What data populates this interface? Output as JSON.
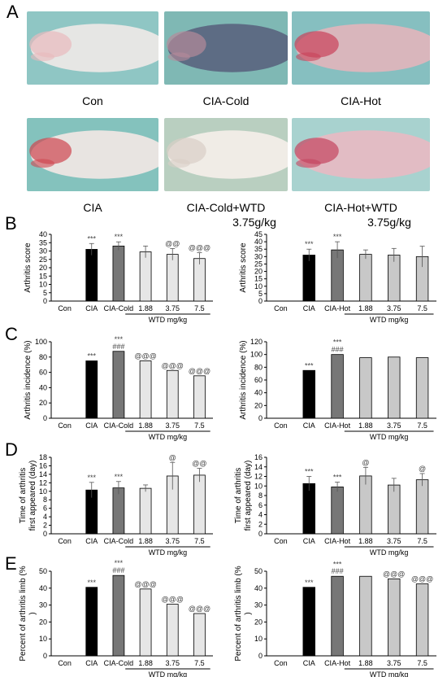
{
  "panel_labels": {
    "A": "A",
    "B": "B",
    "C": "C",
    "D": "D",
    "E": "E"
  },
  "photos": [
    {
      "caption": "Con",
      "bg": "#8fc6c4",
      "paw": "#e6e6e4",
      "tint": "#e8b9bd"
    },
    {
      "caption": "CIA-Cold",
      "bg": "#7fb8b4",
      "paw": "#5d6c84",
      "tint": "#b58a9a"
    },
    {
      "caption": "CIA-Hot",
      "bg": "#86bfc0",
      "paw": "#d9b6bc",
      "tint": "#c9425a"
    },
    {
      "caption": "CIA",
      "bg": "#84c2bd",
      "paw": "#e8e4e1",
      "tint": "#cf4650"
    },
    {
      "caption": "CIA-Cold+WTD",
      "caption2": "3.75g/kg",
      "bg": "#b9cfc0",
      "paw": "#f0ece6",
      "tint": "#d9cfc6"
    },
    {
      "caption": "CIA-Hot+WTD",
      "caption2": "3.75g/kg",
      "bg": "#a8d2cf",
      "paw": "#e2bcc4",
      "tint": "#c5445f"
    }
  ],
  "colors": {
    "con": "#ffffff",
    "cia": "#000000",
    "model": "#777777",
    "wtd": "#e6e6e6",
    "wtd_hot": "#c8c8c8"
  },
  "chart_data": [
    {
      "type": "bar",
      "panel": "B-left",
      "categories": [
        "Con",
        "CIA",
        "CIA-Cold",
        "1.88",
        "3.75",
        "7.5"
      ],
      "values": [
        0,
        31,
        33,
        29.5,
        28,
        25.5
      ],
      "errors": [
        0,
        3.5,
        2.5,
        3.5,
        3.5,
        3.5
      ],
      "annotations": [
        "",
        "***",
        "***",
        "",
        "@@",
        "@@@"
      ],
      "ylabel": "Arthritis score",
      "ylim": [
        0,
        40
      ],
      "yticks": [
        "0",
        "5",
        "10",
        "15",
        "20",
        "25",
        "30",
        "35",
        "40"
      ],
      "group_label": "WTD mg/kg"
    },
    {
      "type": "bar",
      "panel": "B-right",
      "categories": [
        "Con",
        "CIA",
        "CIA-Hot",
        "1.88",
        "3.75",
        "7.5"
      ],
      "values": [
        0,
        31,
        34.5,
        31.5,
        31,
        30
      ],
      "errors": [
        0,
        4,
        5.5,
        3,
        4.5,
        7
      ],
      "annotations": [
        "",
        "***",
        "***",
        "",
        "",
        ""
      ],
      "ylabel": "Arthritis score",
      "ylim": [
        0,
        45
      ],
      "yticks": [
        "0",
        "5",
        "10",
        "15",
        "20",
        "25",
        "30",
        "35",
        "40",
        "45"
      ],
      "group_label": "WTD mg/kg"
    },
    {
      "type": "bar",
      "panel": "C-left",
      "categories": [
        "Con",
        "CIA",
        "CIA-Cold",
        "1.88",
        "3.75",
        "7.5"
      ],
      "values": [
        0,
        75,
        87.5,
        75,
        62.5,
        55.5
      ],
      "errors": [
        0,
        0,
        0,
        0,
        0,
        0
      ],
      "annotations": [
        "",
        "***",
        "***",
        "@@@",
        "@@@",
        "@@@"
      ],
      "annotations2": [
        "",
        "",
        "###",
        "",
        "",
        ""
      ],
      "ylabel": "Arthritis incidence (%)",
      "ylim": [
        0,
        100
      ],
      "yticks": [
        "0",
        "20",
        "40",
        "60",
        "80",
        "100"
      ],
      "group_label": "WTD mg/kg"
    },
    {
      "type": "bar",
      "panel": "C-right",
      "categories": [
        "Con",
        "CIA",
        "CIA-Hot",
        "1.88",
        "3.75",
        "7.5"
      ],
      "values": [
        0,
        75,
        100,
        95,
        96,
        95
      ],
      "errors": [
        0,
        0,
        0,
        0,
        0,
        0
      ],
      "annotations": [
        "",
        "***",
        "***",
        "",
        "",
        ""
      ],
      "annotations2": [
        "",
        "",
        "###",
        "",
        "",
        ""
      ],
      "ylabel": "Arthritis incidence (%)",
      "ylim": [
        0,
        120
      ],
      "yticks": [
        "0",
        "20",
        "40",
        "60",
        "80",
        "100",
        "120"
      ],
      "group_label": "WTD mg/kg"
    },
    {
      "type": "bar",
      "panel": "D-left",
      "categories": [
        "Con",
        "CIA",
        "CIA-Cold",
        "1.88",
        "3.75",
        "7.5"
      ],
      "values": [
        0,
        10.3,
        10.8,
        10.7,
        13.6,
        13.8
      ],
      "errors": [
        0,
        1.8,
        1.5,
        0.8,
        3.2,
        1.6
      ],
      "annotations": [
        "",
        "***",
        "***",
        "",
        "@",
        "@@"
      ],
      "ylabel": "Time of arthritis first appeared (day)",
      "ylim": [
        0,
        18
      ],
      "yticks": [
        "0",
        "2",
        "4",
        "6",
        "8",
        "10",
        "12",
        "14",
        "16",
        "18"
      ],
      "group_label": "WTD mg/kg"
    },
    {
      "type": "bar",
      "panel": "D-right",
      "categories": [
        "Con",
        "CIA",
        "CIA-Hot",
        "1.88",
        "3.75",
        "7.5"
      ],
      "values": [
        0,
        10.5,
        9.8,
        12.1,
        10.2,
        11.3
      ],
      "errors": [
        0,
        1.5,
        1.0,
        1.8,
        1.4,
        1.3
      ],
      "annotations": [
        "",
        "***",
        "***",
        "@",
        "",
        "@"
      ],
      "ylabel": "Time of arthritis first appeared (day)",
      "ylim": [
        0,
        16
      ],
      "yticks": [
        "0",
        "2",
        "4",
        "6",
        "8",
        "10",
        "12",
        "14",
        "16"
      ],
      "group_label": "WTD mg/kg"
    },
    {
      "type": "bar",
      "panel": "E-left",
      "categories": [
        "Con",
        "CIA",
        "CIA-Cold",
        "1.88",
        "3.75",
        "7.5"
      ],
      "values": [
        0,
        40.5,
        47.5,
        39.5,
        30.5,
        25
      ],
      "errors": [
        0,
        0,
        0,
        0,
        0,
        0
      ],
      "annotations": [
        "",
        "***",
        "***",
        "@@@",
        "@@@",
        "@@@"
      ],
      "annotations2": [
        "",
        "",
        "###",
        "",
        "",
        ""
      ],
      "ylabel": "Percent of arthritis limb (%)",
      "ylim": [
        0,
        50
      ],
      "yticks": [
        "0",
        "10",
        "20",
        "30",
        "40",
        "50"
      ],
      "group_label": "WTD mg/kg"
    },
    {
      "type": "bar",
      "panel": "E-right",
      "categories": [
        "Con",
        "CIA",
        "CIA-Hot",
        "1.88",
        "3.75",
        "7.5"
      ],
      "values": [
        0,
        40.5,
        47,
        47,
        45.5,
        42.5
      ],
      "errors": [
        0,
        0,
        0,
        0,
        0,
        0
      ],
      "annotations": [
        "",
        "***",
        "***",
        "",
        "@@@",
        "@@@"
      ],
      "annotations2": [
        "",
        "",
        "###",
        "",
        "",
        ""
      ],
      "ylabel": "Percent of arthritis limb (%)",
      "ylim": [
        0,
        50
      ],
      "yticks": [
        "0",
        "10",
        "20",
        "30",
        "40",
        "50"
      ],
      "group_label": "WTD mg/kg"
    }
  ]
}
